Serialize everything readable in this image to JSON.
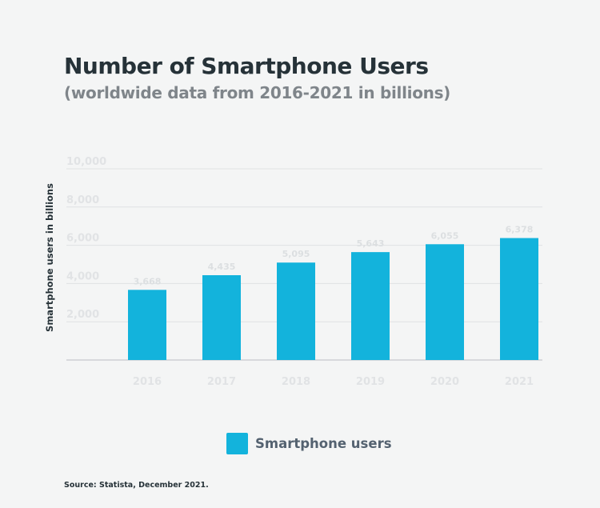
{
  "colors": {
    "bar": "#13b3dc",
    "tick": "#e1e3e5",
    "data_label": "#dcdfe1",
    "grid": "#dfe2e4",
    "axis": "#cdd0d3"
  },
  "chart_data": {
    "type": "bar",
    "title": "Number of Smartphone Users",
    "subtitle": "(worldwide data from 2016-2021 in billions)",
    "xlabel": "",
    "ylabel": "Smartphone users in billions",
    "categories": [
      "2016",
      "2017",
      "2018",
      "2019",
      "2020",
      "2021"
    ],
    "series": [
      {
        "name": "Smartphone users",
        "values": [
          3668,
          4435,
          5095,
          5643,
          6055,
          6378
        ],
        "labels": [
          "3,668",
          "4,435",
          "5,095",
          "5,643",
          "6,055",
          "6,378"
        ]
      }
    ],
    "ylim": [
      0,
      10000
    ],
    "yticks": [
      2000,
      4000,
      6000,
      8000,
      10000
    ],
    "ytick_labels": [
      "2,000",
      "4,000",
      "6,000",
      "8,000",
      "10,000"
    ],
    "grid": true,
    "legend": "bottom-center",
    "source": "Source: Statista, December 2021."
  }
}
